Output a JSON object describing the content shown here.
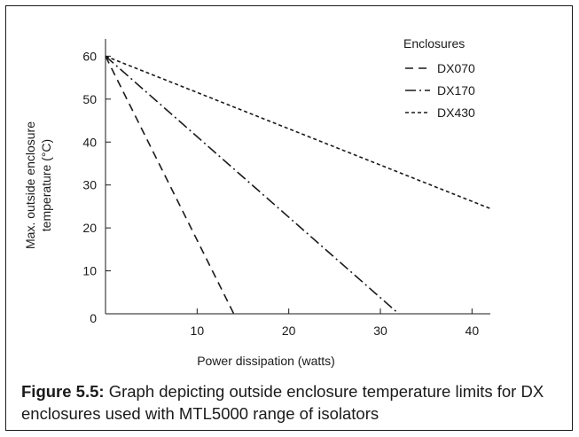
{
  "chart_data": {
    "type": "line",
    "title": "",
    "xlabel": "Power dissipation (watts)",
    "ylabel_lines": [
      "Max. outside enclosure",
      "temperature (°C)"
    ],
    "xlim": [
      0,
      42
    ],
    "ylim": [
      0,
      64
    ],
    "x_ticks": [
      10,
      20,
      30,
      40
    ],
    "y_ticks": [
      10,
      20,
      30,
      40,
      50,
      60
    ],
    "origin_label": "0",
    "grid": false,
    "legend": {
      "title": "Enclosures",
      "placement": "top-right"
    },
    "series": [
      {
        "name": "DX070",
        "style": "dashed",
        "x": [
          0,
          14
        ],
        "y": [
          60,
          0
        ]
      },
      {
        "name": "DX170",
        "style": "dash-dot",
        "x": [
          0,
          32
        ],
        "y": [
          60,
          0
        ]
      },
      {
        "name": "DX430",
        "style": "dotted",
        "x": [
          0,
          42
        ],
        "y": [
          60,
          24.5
        ]
      }
    ]
  },
  "caption": {
    "label": "Figure 5.5:",
    "text": " Graph depicting outside enclosure temperature limits for DX enclosures used with MTL5000 range of isolators"
  }
}
